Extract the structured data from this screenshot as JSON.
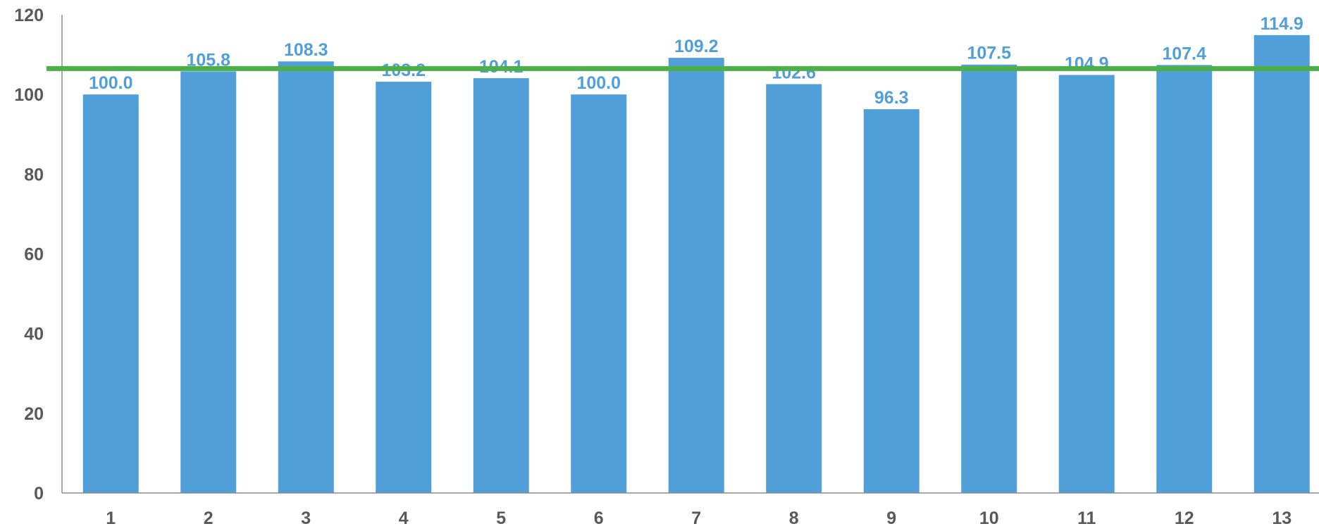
{
  "chart_data": {
    "type": "bar",
    "categories": [
      "1",
      "2",
      "3",
      "4",
      "5",
      "6",
      "7",
      "8",
      "9",
      "10",
      "11",
      "12",
      "13"
    ],
    "values": [
      100.0,
      105.8,
      108.3,
      103.2,
      104.1,
      100.0,
      109.2,
      102.6,
      96.3,
      107.5,
      104.9,
      107.4,
      114.9
    ],
    "value_labels": [
      "100.0",
      "105.8",
      "108.3",
      "103.2",
      "104.1",
      "100.0",
      "109.2",
      "102.6",
      "96.3",
      "107.5",
      "104.9",
      "107.4",
      "114.9"
    ],
    "ylim": [
      0,
      120
    ],
    "yticks": [
      "0",
      "20",
      "40",
      "60",
      "80",
      "100",
      "120"
    ],
    "reference_line": 106.5,
    "title": "",
    "xlabel": "",
    "ylabel": "",
    "grid": false,
    "legend": "none",
    "colors": {
      "bar": "#519fd8",
      "data_label": "#519fd8",
      "reference_line": "#4caf48",
      "axis": "#8c8c8c",
      "tick_label": "#595959"
    }
  }
}
